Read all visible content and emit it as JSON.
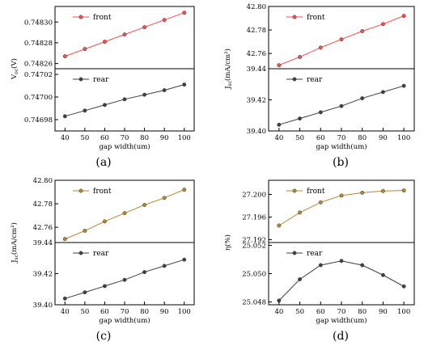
{
  "chart_data": [
    {
      "id": "a",
      "type": "line",
      "caption": "(a)",
      "xlabel": "gap width(um)",
      "x": [
        40,
        50,
        60,
        70,
        80,
        90,
        100
      ],
      "xticks": [
        "40",
        "50",
        "60",
        "70",
        "80",
        "90",
        "100"
      ],
      "ylabel_main": "V",
      "ylabel_sub": "oc",
      "ylabel_tail": "(V)",
      "panels": [
        {
          "position": "top",
          "legend": "front",
          "color": "#ff4b4b",
          "ylim": [
            0.748255,
            0.748315
          ],
          "yticks": [
            "0.74826",
            "0.74828",
            "0.74830"
          ],
          "ytick_values": [
            0.74826,
            0.74828,
            0.7483
          ],
          "values": [
            0.748267,
            0.748274,
            0.748281,
            0.748288,
            0.748295,
            0.748302,
            0.748309
          ]
        },
        {
          "position": "bottom",
          "legend": "rear",
          "color": "#404040",
          "ylim": [
            0.74697,
            0.747025
          ],
          "yticks": [
            "0.74698",
            "0.74700",
            "0.74702"
          ],
          "ytick_values": [
            0.74698,
            0.747,
            0.74702
          ],
          "values": [
            0.746983,
            0.746988,
            0.746993,
            0.746998,
            0.747002,
            0.747006,
            0.747011
          ]
        }
      ]
    },
    {
      "id": "b",
      "type": "line",
      "caption": "(b)",
      "xlabel": "gap width(um)",
      "x": [
        40,
        50,
        60,
        70,
        80,
        90,
        100
      ],
      "xticks": [
        "40",
        "50",
        "60",
        "70",
        "80",
        "90",
        "100"
      ],
      "ylabel_main": "J",
      "ylabel_sub": "sc",
      "ylabel_tail": "(mA/cm²)",
      "panels": [
        {
          "position": "top",
          "legend": "front",
          "color": "#ff4b4b",
          "ylim": [
            42.747,
            42.8
          ],
          "yticks": [
            "42.76",
            "42.78",
            "42.80"
          ],
          "ytick_values": [
            42.76,
            42.78,
            42.8
          ],
          "values": [
            42.75,
            42.757,
            42.765,
            42.772,
            42.779,
            42.785,
            42.792
          ]
        },
        {
          "position": "bottom",
          "legend": "rear",
          "color": "#404040",
          "ylim": [
            39.4,
            39.44
          ],
          "yticks": [
            "39.40",
            "39.42",
            "39.44"
          ],
          "ytick_values": [
            39.4,
            39.42,
            39.44
          ],
          "values": [
            39.404,
            39.408,
            39.412,
            39.416,
            39.421,
            39.425,
            39.429
          ]
        }
      ]
    },
    {
      "id": "c",
      "type": "line",
      "caption": "(c)",
      "xlabel": "gap width(um)",
      "x": [
        40,
        50,
        60,
        70,
        80,
        90,
        100
      ],
      "xticks": [
        "40",
        "50",
        "60",
        "70",
        "80",
        "90",
        "100"
      ],
      "ylabel_main": "J",
      "ylabel_sub": "sc",
      "ylabel_tail": "(mA/cm²)",
      "panels": [
        {
          "position": "top",
          "legend": "front",
          "color": "#b8862f",
          "ylim": [
            42.747,
            42.8
          ],
          "yticks": [
            "42.76",
            "42.78",
            "42.80"
          ],
          "ytick_values": [
            42.76,
            42.78,
            42.8
          ],
          "values": [
            42.75,
            42.757,
            42.765,
            42.772,
            42.779,
            42.785,
            42.792
          ]
        },
        {
          "position": "bottom",
          "legend": "rear",
          "color": "#404040",
          "ylim": [
            39.4,
            39.44
          ],
          "yticks": [
            "39.40",
            "39.42",
            "39.44"
          ],
          "ytick_values": [
            39.4,
            39.42,
            39.44
          ],
          "values": [
            39.404,
            39.408,
            39.412,
            39.416,
            39.421,
            39.425,
            39.429
          ]
        }
      ]
    },
    {
      "id": "d",
      "type": "line",
      "caption": "(d)",
      "xlabel": "gap width(um)",
      "x": [
        40,
        50,
        60,
        70,
        80,
        90,
        100
      ],
      "xticks": [
        "40",
        "50",
        "60",
        "70",
        "80",
        "90",
        "100"
      ],
      "ylabel_main": "η(%)",
      "ylabel_sub": "",
      "ylabel_tail": "",
      "panels": [
        {
          "position": "top",
          "legend": "front",
          "color": "#b8862f",
          "ylim": [
            27.1915,
            27.2025
          ],
          "yticks": [
            "27.192",
            "27.196",
            "27.200"
          ],
          "ytick_values": [
            27.192,
            27.196,
            27.2
          ],
          "values": [
            27.1945,
            27.1968,
            27.1986,
            27.1998,
            27.2003,
            27.2006,
            27.2007
          ]
        },
        {
          "position": "bottom",
          "legend": "rear",
          "color": "#404040",
          "ylim": [
            25.0478,
            25.0522
          ],
          "yticks": [
            "25.048",
            "25.050",
            "25.052"
          ],
          "ytick_values": [
            25.048,
            25.05,
            25.052
          ],
          "values": [
            25.0481,
            25.0496,
            25.0506,
            25.0509,
            25.0506,
            25.0499,
            25.0491
          ]
        }
      ]
    }
  ]
}
